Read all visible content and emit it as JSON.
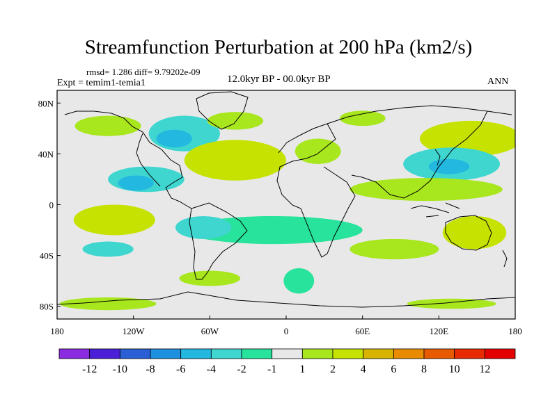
{
  "title": "Streamfunction Perturbation at 200 hPa (km2/s)",
  "stats": "rmsd= 1.286 diff= 9.79202e-09",
  "experiment": "Expt = temim1-temia1",
  "period": "12.0kyr BP - 00.0kyr BP",
  "season": "ANN",
  "map": {
    "projection": "cylindrical equidistant",
    "lon_range": [
      -180,
      180
    ],
    "lat_range": [
      -90,
      90
    ],
    "x_ticks": [
      {
        "lon": -180,
        "label": "180"
      },
      {
        "lon": -120,
        "label": "120W"
      },
      {
        "lon": -60,
        "label": "60W"
      },
      {
        "lon": 0,
        "label": "0"
      },
      {
        "lon": 60,
        "label": "60E"
      },
      {
        "lon": 120,
        "label": "120E"
      },
      {
        "lon": 180,
        "label": "180"
      }
    ],
    "y_ticks": [
      {
        "lat": 80,
        "label": "80N"
      },
      {
        "lat": 40,
        "label": "40N"
      },
      {
        "lat": 0,
        "label": "0"
      },
      {
        "lat": -40,
        "label": "40S"
      },
      {
        "lat": -80,
        "label": "80S"
      }
    ],
    "background_color": "#e8e8e8",
    "anomaly_regions": [
      {
        "id": "n-america-neg",
        "center": [
          -80,
          56
        ],
        "radius": [
          28,
          14
        ],
        "level": -3
      },
      {
        "id": "n-america-neg-core",
        "center": [
          -88,
          52
        ],
        "radius": [
          14,
          7
        ],
        "level": -5
      },
      {
        "id": "alaska-pos",
        "center": [
          -140,
          62
        ],
        "radius": [
          26,
          8
        ],
        "level": 1.5
      },
      {
        "id": "canada-pos",
        "center": [
          -40,
          66
        ],
        "radius": [
          22,
          7
        ],
        "level": 1.5
      },
      {
        "id": "siberia-pos",
        "center": [
          60,
          68
        ],
        "radius": [
          18,
          6
        ],
        "level": 1.5
      },
      {
        "id": "atlantic-pos",
        "center": [
          -40,
          35
        ],
        "radius": [
          40,
          16
        ],
        "level": 2.5
      },
      {
        "id": "atlantic-pos-core",
        "center": [
          -42,
          36
        ],
        "radius": [
          24,
          9
        ],
        "level": 3.5
      },
      {
        "id": "europe-pos",
        "center": [
          25,
          42
        ],
        "radius": [
          18,
          10
        ],
        "level": 1.5
      },
      {
        "id": "nw-pacific-pos",
        "center": [
          145,
          52
        ],
        "radius": [
          40,
          14
        ],
        "level": 2.5
      },
      {
        "id": "nw-pacific-pos-core",
        "center": [
          140,
          52
        ],
        "radius": [
          18,
          6
        ],
        "level": 3.5
      },
      {
        "id": "west-pacific-neg",
        "center": [
          130,
          32
        ],
        "radius": [
          38,
          13
        ],
        "level": -3
      },
      {
        "id": "west-pacific-neg-core",
        "center": [
          128,
          30
        ],
        "radius": [
          16,
          6
        ],
        "level": -5
      },
      {
        "id": "n-indian-pos",
        "center": [
          110,
          12
        ],
        "radius": [
          60,
          9
        ],
        "level": 1.5
      },
      {
        "id": "ne-pacific-neg",
        "center": [
          -110,
          20
        ],
        "radius": [
          30,
          10
        ],
        "level": -3
      },
      {
        "id": "ne-pacific-neg-core",
        "center": [
          -118,
          17
        ],
        "radius": [
          14,
          6
        ],
        "level": -5
      },
      {
        "id": "e-pacific-pos",
        "center": [
          -135,
          -12
        ],
        "radius": [
          32,
          12
        ],
        "level": 2.5
      },
      {
        "id": "e-pacific-pos-core",
        "center": [
          -132,
          -12
        ],
        "radius": [
          16,
          6
        ],
        "level": 3.5
      },
      {
        "id": "s-atlantic-belt",
        "center": [
          -10,
          -20
        ],
        "radius": [
          70,
          11
        ],
        "level": -1.5
      },
      {
        "id": "s-america-neg",
        "center": [
          -65,
          -18
        ],
        "radius": [
          22,
          9
        ],
        "level": -3
      },
      {
        "id": "s-pacific-neg",
        "center": [
          -140,
          -35
        ],
        "radius": [
          20,
          6
        ],
        "level": -3
      },
      {
        "id": "s-america-pos",
        "center": [
          -60,
          -58
        ],
        "radius": [
          24,
          6
        ],
        "level": 1.5
      },
      {
        "id": "s-atlantic-neg",
        "center": [
          10,
          -60
        ],
        "radius": [
          12,
          10
        ],
        "level": -1.5
      },
      {
        "id": "indian-pos",
        "center": [
          85,
          -35
        ],
        "radius": [
          35,
          8
        ],
        "level": 1.5
      },
      {
        "id": "australia-pos",
        "center": [
          148,
          -22
        ],
        "radius": [
          25,
          13
        ],
        "level": 2.5
      },
      {
        "id": "australia-pos-core",
        "center": [
          150,
          -22
        ],
        "radius": [
          10,
          6
        ],
        "level": 3.5
      },
      {
        "id": "s-ocean-pos",
        "center": [
          -140,
          -78
        ],
        "radius": [
          38,
          5
        ],
        "level": 1.5
      },
      {
        "id": "antarctic-pos",
        "center": [
          130,
          -78
        ],
        "radius": [
          35,
          4
        ],
        "level": 1.5
      }
    ]
  },
  "colorbar": {
    "colors": [
      "#8a2be2",
      "#4b1fd8",
      "#2a5fd6",
      "#1f8fe0",
      "#22b8e0",
      "#3fd6d0",
      "#27e39c",
      "#e8e8e8",
      "#a8e61d",
      "#c6e200",
      "#d8b400",
      "#e88b00",
      "#e85a00",
      "#e82a00",
      "#e30000"
    ],
    "labels": [
      "-12",
      "-10",
      "-8",
      "-6",
      "-4",
      "-2",
      "-1",
      "1",
      "2",
      "4",
      "6",
      "8",
      "10",
      "12"
    ],
    "level_bounds": [
      -12,
      -10,
      -8,
      -6,
      -4,
      -2,
      -1,
      1,
      2,
      4,
      6,
      8,
      10,
      12
    ]
  }
}
